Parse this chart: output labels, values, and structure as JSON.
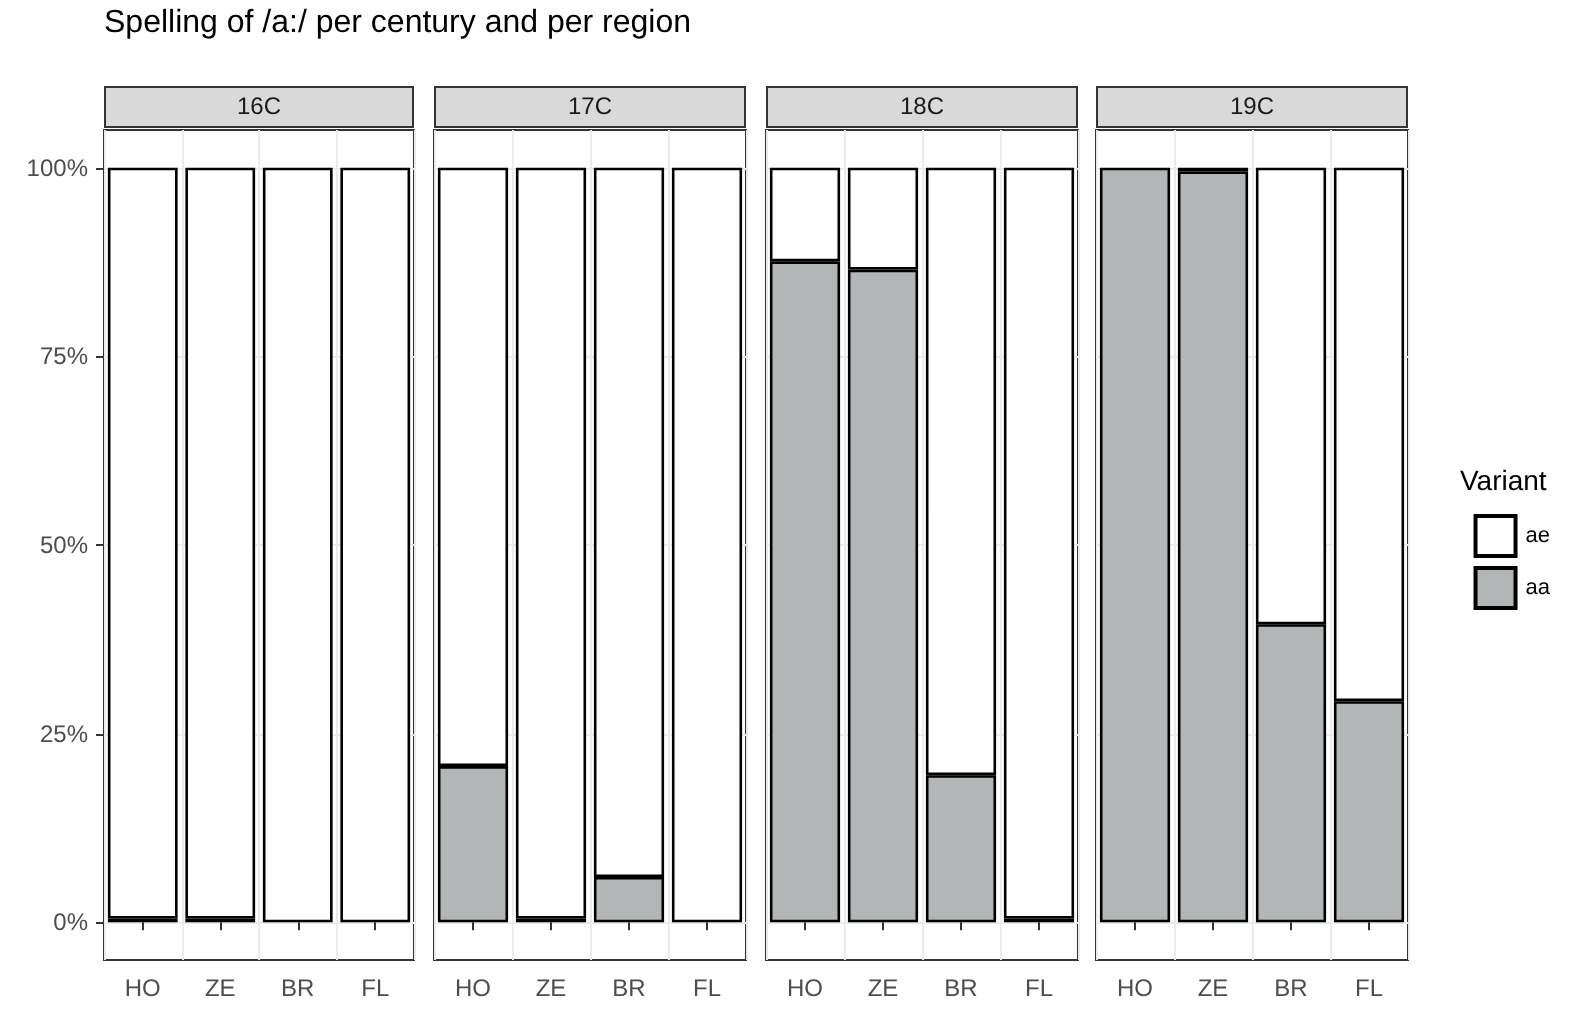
{
  "chart_data": [
    {
      "type": "bar",
      "title": "Spelling of /a:/ per century and per region",
      "subtitle": "16C",
      "categories": [
        "HO",
        "ZE",
        "BR",
        "FL"
      ],
      "stacked": true,
      "grid": true,
      "ylim": [
        -5,
        105
      ],
      "yticks": [
        {
          "value": 0,
          "label": "0%"
        },
        {
          "value": 25,
          "label": "25%"
        },
        {
          "value": 50,
          "label": "50%"
        },
        {
          "value": 75,
          "label": "75%"
        },
        {
          "value": 100,
          "label": "100%"
        }
      ],
      "series": [
        {
          "color": "#b2b6b6",
          "values": [
            0.5,
            0.5,
            0,
            0
          ]
        },
        {
          "color": "#ffffff",
          "values": [
            99.5,
            99.5,
            100,
            100
          ]
        }
      ]
    },
    {
      "type": "bar",
      "subtitle": "17C",
      "categories": [
        "HO",
        "ZE",
        "BR",
        "FL"
      ],
      "stacked": true,
      "grid": true,
      "tick_labels": "x",
      "ylim": [
        -5,
        105
      ],
      "series": [
        {
          "color": "#b2b6b6",
          "values": [
            20.7,
            0.5,
            6,
            0
          ]
        },
        {
          "color": "#ffffff",
          "values": [
            79.3,
            99.5,
            94,
            100
          ]
        }
      ]
    },
    {
      "type": "bar",
      "subtitle": "18C",
      "categories": [
        "HO",
        "ZE",
        "BR",
        "FL"
      ],
      "stacked": true,
      "grid": true,
      "tick_labels": "x",
      "ylim": [
        -5,
        105
      ],
      "series": [
        {
          "color": "#b2b6b6",
          "values": [
            87.6,
            86.5,
            19.5,
            0.5
          ]
        },
        {
          "color": "#ffffff",
          "values": [
            12.4,
            13.5,
            80.5,
            99.5
          ]
        }
      ]
    },
    {
      "type": "bar",
      "subtitle": "19C",
      "categories": [
        "HO",
        "ZE",
        "BR",
        "FL"
      ],
      "stacked": true,
      "grid": true,
      "tick_labels": "x",
      "legend": "right",
      "legend_title": "Variant",
      "ylim": [
        -5,
        105
      ],
      "series": [
        {
          "name": "aa",
          "color": "#b2b6b6",
          "values": [
            100,
            99.5,
            39.5,
            29.3
          ]
        },
        {
          "name": "ae",
          "color": "#ffffff",
          "values": [
            0,
            0.5,
            60.5,
            70.7
          ]
        }
      ]
    }
  ]
}
